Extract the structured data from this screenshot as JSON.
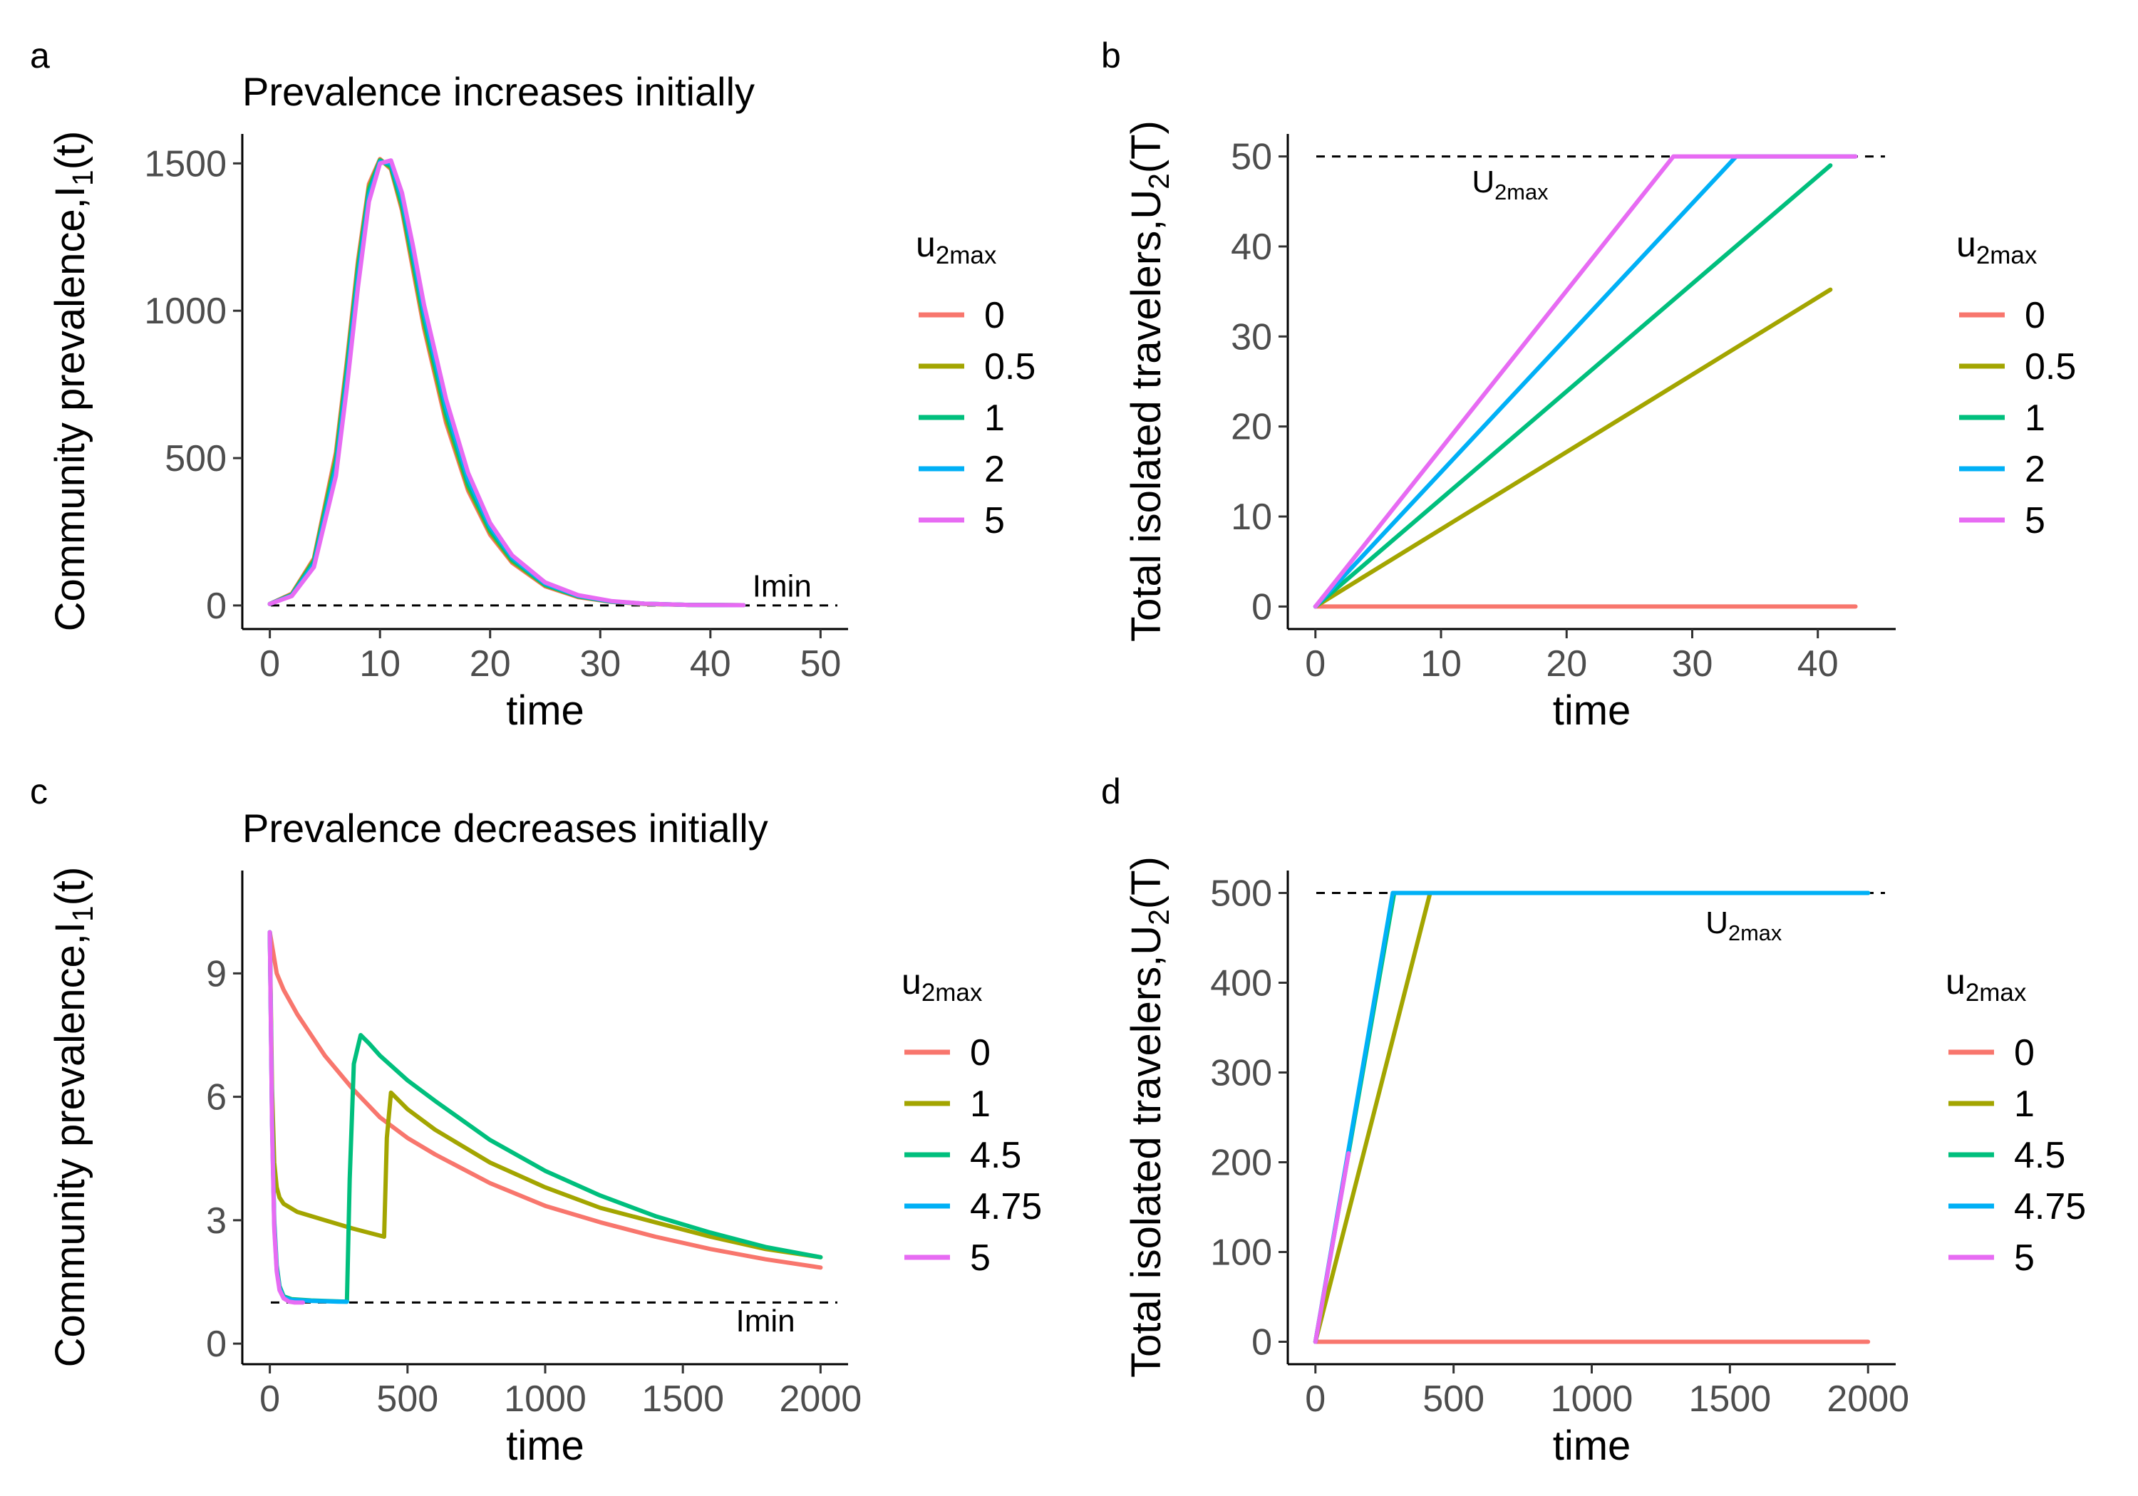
{
  "chart_data": [
    {
      "tag": "a",
      "type": "line",
      "title": "Prevalence increases initially",
      "xlabel": "time",
      "ylabel": {
        "main": "Community prevalence,",
        "sym": "I",
        "sub": "1",
        "arg": "(t)"
      },
      "xlim": [
        -2.5,
        52.5
      ],
      "ylim": [
        -80,
        1600
      ],
      "xticks": [
        0,
        10,
        20,
        30,
        40,
        50
      ],
      "yticks": [
        0,
        500,
        1000,
        1500
      ],
      "hline": {
        "y": 0,
        "label": "Imin",
        "label_at": [
          46.5,
          30
        ]
      },
      "legend": {
        "title_sym": "u",
        "title_sub": "2max",
        "position": "right",
        "labels": [
          "0",
          "0.5",
          "1",
          "2",
          "5"
        ]
      },
      "series": [
        {
          "name": "0",
          "color": "#F8766D",
          "x": [
            0,
            2,
            4,
            6,
            7,
            8,
            9,
            10,
            11,
            12,
            13,
            14,
            16,
            18,
            20,
            22,
            25,
            28,
            31,
            34,
            38,
            43
          ],
          "y": [
            5,
            40,
            160,
            520,
            830,
            1170,
            1430,
            1515,
            1480,
            1340,
            1140,
            940,
            620,
            390,
            240,
            145,
            65,
            28,
            12,
            5,
            2,
            1
          ]
        },
        {
          "name": "0.5",
          "color": "#A3A500",
          "x": [
            0,
            2,
            4,
            6,
            7,
            8,
            9,
            10,
            11,
            12,
            13,
            14,
            16,
            18,
            20,
            22,
            25,
            28,
            31,
            34,
            38,
            43
          ],
          "y": [
            5,
            38,
            155,
            505,
            815,
            1155,
            1420,
            1512,
            1485,
            1350,
            1155,
            955,
            635,
            400,
            248,
            150,
            68,
            30,
            13,
            5,
            2,
            1
          ]
        },
        {
          "name": "1",
          "color": "#00BF7D",
          "x": [
            0,
            2,
            4,
            6,
            7,
            8,
            9,
            10,
            11,
            12,
            13,
            14,
            16,
            18,
            20,
            22,
            25,
            28,
            31,
            34,
            38,
            43
          ],
          "y": [
            5,
            36,
            150,
            490,
            800,
            1140,
            1410,
            1510,
            1490,
            1360,
            1170,
            970,
            650,
            410,
            255,
            155,
            70,
            31,
            13,
            6,
            2,
            1
          ]
        },
        {
          "name": "2",
          "color": "#00B0F6",
          "x": [
            0,
            2,
            4,
            6,
            7,
            8,
            9,
            10,
            11,
            12,
            13,
            14,
            16,
            18,
            20,
            22,
            25,
            28,
            31,
            34,
            38,
            43
          ],
          "y": [
            5,
            34,
            140,
            465,
            770,
            1110,
            1390,
            1505,
            1500,
            1380,
            1195,
            995,
            675,
            430,
            268,
            163,
            74,
            33,
            14,
            6,
            2,
            1
          ]
        },
        {
          "name": "5",
          "color": "#E76BF3",
          "x": [
            0,
            2,
            4,
            6,
            7,
            8,
            9,
            10,
            11,
            12,
            13,
            14,
            16,
            18,
            20,
            22,
            25,
            28,
            31,
            34,
            38,
            43
          ],
          "y": [
            5,
            32,
            130,
            440,
            740,
            1080,
            1370,
            1500,
            1510,
            1400,
            1220,
            1020,
            700,
            450,
            280,
            170,
            78,
            35,
            15,
            6,
            2,
            1
          ]
        }
      ]
    },
    {
      "tag": "b",
      "type": "line",
      "title": "",
      "xlabel": "time",
      "ylabel": {
        "main": "Total isolated travelers,",
        "sym": "U",
        "sub": "2",
        "arg": "(T)"
      },
      "xlim": [
        -2.2,
        46.2
      ],
      "ylim": [
        -2.5,
        52.5
      ],
      "xticks": [
        0,
        10,
        20,
        30,
        40
      ],
      "yticks": [
        0,
        10,
        20,
        30,
        40,
        50
      ],
      "hline": {
        "y": 50,
        "label_sym": "U",
        "label_sub": "2max",
        "label_at": [
          15.5,
          46
        ]
      },
      "legend": {
        "title_sym": "u",
        "title_sub": "2max",
        "position": "right",
        "labels": [
          "0",
          "0.5",
          "1",
          "2",
          "5"
        ]
      },
      "series": [
        {
          "name": "0",
          "color": "#F8766D",
          "x": [
            0,
            43
          ],
          "y": [
            0,
            0
          ]
        },
        {
          "name": "0.5",
          "color": "#A3A500",
          "x": [
            0,
            41
          ],
          "y": [
            0,
            35.2
          ]
        },
        {
          "name": "1",
          "color": "#00BF7D",
          "x": [
            0,
            41
          ],
          "y": [
            0,
            49
          ]
        },
        {
          "name": "2",
          "color": "#00B0F6",
          "x": [
            0,
            33.5,
            43
          ],
          "y": [
            0,
            50,
            50
          ]
        },
        {
          "name": "5",
          "color": "#E76BF3",
          "x": [
            0,
            28.5,
            43
          ],
          "y": [
            0,
            50,
            50
          ]
        }
      ]
    },
    {
      "tag": "c",
      "type": "line",
      "title": "Prevalence decreases initially",
      "xlabel": "time",
      "ylabel": {
        "main": "Community prevalence,",
        "sym": "I",
        "sub": "1",
        "arg": "(t)"
      },
      "xlim": [
        -100,
        2100
      ],
      "ylim": [
        -0.5,
        11.5
      ],
      "xticks": [
        0,
        500,
        1000,
        1500,
        2000
      ],
      "yticks": [
        0,
        3,
        6,
        9
      ],
      "hline": {
        "y": 1,
        "label": "Imin",
        "label_at": [
          1800,
          0.3
        ]
      },
      "legend": {
        "title_sym": "u",
        "title_sub": "2max",
        "position": "right",
        "labels": [
          "0",
          "1",
          "4.5",
          "4.75",
          "5"
        ]
      },
      "series": [
        {
          "name": "0",
          "color": "#F8766D",
          "x": [
            0,
            25,
            50,
            100,
            150,
            200,
            300,
            400,
            500,
            600,
            800,
            1000,
            1200,
            1400,
            1600,
            1800,
            2000
          ],
          "y": [
            10,
            9,
            8.6,
            8.0,
            7.5,
            7.0,
            6.2,
            5.5,
            5.0,
            4.6,
            3.9,
            3.35,
            2.95,
            2.6,
            2.3,
            2.05,
            1.85
          ]
        },
        {
          "name": "1",
          "color": "#A3A500",
          "x": [
            0,
            8,
            16,
            25,
            35,
            50,
            100,
            200,
            300,
            415,
            425,
            440,
            470,
            500,
            600,
            800,
            1000,
            1200,
            1400,
            1600,
            1800,
            2000
          ],
          "y": [
            10,
            6.2,
            4.4,
            3.8,
            3.55,
            3.4,
            3.2,
            3.0,
            2.8,
            2.6,
            5.0,
            6.1,
            5.9,
            5.7,
            5.2,
            4.4,
            3.8,
            3.3,
            2.95,
            2.6,
            2.3,
            2.1
          ]
        },
        {
          "name": "4.5",
          "color": "#00BF7D",
          "x": [
            0,
            8,
            16,
            25,
            35,
            50,
            80,
            150,
            280,
            290,
            305,
            330,
            360,
            400,
            500,
            600,
            800,
            1000,
            1200,
            1400,
            1600,
            1800,
            2000
          ],
          "y": [
            10,
            5.5,
            3.0,
            1.9,
            1.4,
            1.15,
            1.08,
            1.05,
            1.02,
            4.0,
            6.8,
            7.5,
            7.3,
            7.0,
            6.4,
            5.9,
            4.95,
            4.2,
            3.6,
            3.1,
            2.7,
            2.35,
            2.1
          ]
        },
        {
          "name": "4.75",
          "color": "#00B0F6",
          "x": [
            0,
            8,
            16,
            25,
            35,
            50,
            80,
            150,
            200,
            250,
            280
          ],
          "y": [
            10,
            5.4,
            2.9,
            1.8,
            1.35,
            1.12,
            1.06,
            1.04,
            1.03,
            1.02,
            1.02
          ]
        },
        {
          "name": "5",
          "color": "#E76BF3",
          "x": [
            0,
            8,
            16,
            25,
            35,
            50,
            70,
            90,
            120
          ],
          "y": [
            10,
            5.3,
            2.8,
            1.75,
            1.3,
            1.1,
            1.02,
            1.0,
            1.0
          ]
        }
      ]
    },
    {
      "tag": "d",
      "type": "line",
      "title": "",
      "xlabel": "time",
      "ylabel": {
        "main": "Total isolated travelers,",
        "sym": "U",
        "sub": "2",
        "arg": "(T)"
      },
      "xlim": [
        -100,
        2100
      ],
      "ylim": [
        -25,
        525
      ],
      "xticks": [
        0,
        500,
        1000,
        1500,
        2000
      ],
      "yticks": [
        0,
        100,
        200,
        300,
        400,
        500
      ],
      "hline": {
        "y": 500,
        "label_sym": "U",
        "label_sub": "2max",
        "label_at": [
          1550,
          455
        ]
      },
      "legend": {
        "title_sym": "u",
        "title_sub": "2max",
        "position": "right",
        "labels": [
          "0",
          "1",
          "4.5",
          "4.75",
          "5"
        ]
      },
      "series": [
        {
          "name": "0",
          "color": "#F8766D",
          "x": [
            0,
            2000
          ],
          "y": [
            0,
            0
          ]
        },
        {
          "name": "1",
          "color": "#A3A500",
          "x": [
            0,
            415,
            2000
          ],
          "y": [
            0,
            500,
            500
          ]
        },
        {
          "name": "4.5",
          "color": "#00BF7D",
          "x": [
            0,
            285,
            2000
          ],
          "y": [
            0,
            500,
            500
          ]
        },
        {
          "name": "4.75",
          "color": "#00B0F6",
          "x": [
            0,
            280,
            2000
          ],
          "y": [
            0,
            500,
            500
          ]
        },
        {
          "name": "5",
          "color": "#E76BF3",
          "x": [
            0,
            120
          ],
          "y": [
            0,
            210
          ]
        }
      ]
    }
  ]
}
